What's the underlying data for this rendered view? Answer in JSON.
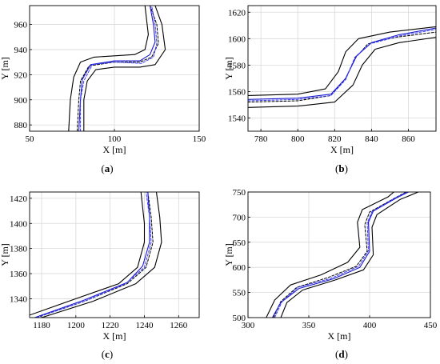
{
  "chart_data": [
    {
      "type": "line",
      "caption": "a",
      "xlabel": "X [m]",
      "ylabel": "Y [m]",
      "xlim": [
        50,
        150
      ],
      "ylim": [
        875,
        975
      ],
      "xticks": [
        50,
        100,
        150
      ],
      "yticks": [
        880,
        900,
        920,
        940,
        960
      ],
      "grid": true,
      "series": [
        {
          "style": "black-solid",
          "points": [
            [
              73,
              875
            ],
            [
              74,
              900
            ],
            [
              76,
              918
            ],
            [
              80,
              930
            ],
            [
              88,
              934
            ],
            [
              100,
              935
            ],
            [
              112,
              936
            ],
            [
              118,
              940
            ],
            [
              120,
              952
            ],
            [
              118,
              975
            ]
          ]
        },
        {
          "style": "black-solid",
          "points": [
            [
              82,
              875
            ],
            [
              82,
              900
            ],
            [
              84,
              915
            ],
            [
              89,
              924
            ],
            [
              100,
              926
            ],
            [
              115,
              926
            ],
            [
              124,
              928
            ],
            [
              130,
              940
            ],
            [
              128,
              960
            ],
            [
              124,
              975
            ]
          ]
        },
        {
          "style": "black-dashed",
          "points": [
            [
              78,
              875
            ],
            [
              79,
              900
            ],
            [
              80,
              915
            ],
            [
              85,
              927
            ],
            [
              100,
              930
            ],
            [
              115,
              930
            ],
            [
              122,
              934
            ],
            [
              126,
              945
            ],
            [
              125,
              960
            ],
            [
              121,
              975
            ]
          ]
        },
        {
          "style": "blue-solid",
          "points": [
            [
              79,
              875
            ],
            [
              80,
              900
            ],
            [
              81,
              916
            ],
            [
              86,
              928
            ],
            [
              100,
              931
            ],
            [
              115,
              931
            ],
            [
              121,
              936
            ],
            [
              124,
              946
            ],
            [
              123,
              960
            ],
            [
              121,
              975
            ]
          ]
        },
        {
          "style": "blue-dashed",
          "points": [
            [
              80,
              875
            ],
            [
              80,
              900
            ],
            [
              82,
              915
            ],
            [
              87,
              928
            ],
            [
              100,
              930
            ],
            [
              116,
              929
            ],
            [
              123,
              934
            ],
            [
              125,
              945
            ],
            [
              124,
              960
            ],
            [
              122,
              975
            ]
          ]
        }
      ]
    },
    {
      "type": "line",
      "caption": "b",
      "xlabel": "X [m]",
      "ylabel": "Y [m]",
      "xlim": [
        773,
        875
      ],
      "ylim": [
        1530,
        1625
      ],
      "xticks": [
        780,
        800,
        820,
        840,
        860
      ],
      "yticks": [
        1540,
        1560,
        1580,
        1600,
        1620
      ],
      "grid": true,
      "series": [
        {
          "style": "black-solid",
          "points": [
            [
              773,
              1557
            ],
            [
              800,
              1558
            ],
            [
              815,
              1562
            ],
            [
              822,
              1575
            ],
            [
              826,
              1590
            ],
            [
              833,
              1600
            ],
            [
              850,
              1605
            ],
            [
              875,
              1609
            ]
          ]
        },
        {
          "style": "black-solid",
          "points": [
            [
              773,
              1548
            ],
            [
              800,
              1549
            ],
            [
              820,
              1552
            ],
            [
              830,
              1565
            ],
            [
              835,
              1580
            ],
            [
              842,
              1592
            ],
            [
              855,
              1597
            ],
            [
              875,
              1601
            ]
          ]
        },
        {
          "style": "black-dashed",
          "points": [
            [
              773,
              1552
            ],
            [
              800,
              1553
            ],
            [
              818,
              1557
            ],
            [
              826,
              1570
            ],
            [
              831,
              1585
            ],
            [
              838,
              1596
            ],
            [
              853,
              1601
            ],
            [
              875,
              1605
            ]
          ]
        },
        {
          "style": "blue-solid",
          "points": [
            [
              773,
              1554
            ],
            [
              800,
              1555
            ],
            [
              818,
              1558
            ],
            [
              826,
              1570
            ],
            [
              832,
              1587
            ],
            [
              840,
              1597
            ],
            [
              855,
              1603
            ],
            [
              875,
              1608
            ]
          ]
        },
        {
          "style": "blue-dashed",
          "points": [
            [
              773,
              1553
            ],
            [
              800,
              1554
            ],
            [
              818,
              1557
            ],
            [
              826,
              1569
            ],
            [
              831,
              1586
            ],
            [
              839,
              1596
            ],
            [
              855,
              1602
            ],
            [
              875,
              1607
            ]
          ]
        }
      ]
    },
    {
      "type": "line",
      "caption": "c",
      "xlabel": "X [m]",
      "ylabel": "Y [m]",
      "xlim": [
        1173,
        1272
      ],
      "ylim": [
        1325,
        1425
      ],
      "xticks": [
        1180,
        1200,
        1220,
        1240,
        1260
      ],
      "yticks": [
        1340,
        1360,
        1380,
        1400,
        1420
      ],
      "grid": true,
      "series": [
        {
          "style": "black-solid",
          "points": [
            [
              1173,
              1327
            ],
            [
              1200,
              1340
            ],
            [
              1225,
              1352
            ],
            [
              1236,
              1365
            ],
            [
              1240,
              1385
            ],
            [
              1240,
              1400
            ],
            [
              1238,
              1425
            ]
          ]
        },
        {
          "style": "black-solid",
          "points": [
            [
              1180,
              1325
            ],
            [
              1210,
              1338
            ],
            [
              1235,
              1352
            ],
            [
              1246,
              1365
            ],
            [
              1250,
              1385
            ],
            [
              1249,
              1405
            ],
            [
              1247,
              1425
            ]
          ]
        },
        {
          "style": "black-dashed",
          "points": [
            [
              1177,
              1325
            ],
            [
              1205,
              1338
            ],
            [
              1230,
              1352
            ],
            [
              1241,
              1365
            ],
            [
              1245,
              1385
            ],
            [
              1244,
              1405
            ],
            [
              1242,
              1425
            ]
          ]
        },
        {
          "style": "blue-solid",
          "points": [
            [
              1176,
              1325
            ],
            [
              1205,
              1339
            ],
            [
              1230,
              1353
            ],
            [
              1239,
              1366
            ],
            [
              1243,
              1385
            ],
            [
              1243,
              1405
            ],
            [
              1242,
              1425
            ]
          ]
        },
        {
          "style": "blue-dashed",
          "points": [
            [
              1177,
              1325
            ],
            [
              1205,
              1338
            ],
            [
              1229,
              1352
            ],
            [
              1240,
              1365
            ],
            [
              1244,
              1385
            ],
            [
              1243,
              1405
            ],
            [
              1241,
              1425
            ]
          ]
        }
      ]
    },
    {
      "type": "line",
      "caption": "d",
      "xlabel": "X [m]",
      "ylabel": "Y [m]",
      "xlim": [
        300,
        450
      ],
      "ylim": [
        500,
        750
      ],
      "xticks": [
        300,
        350,
        400,
        450
      ],
      "yticks": [
        500,
        550,
        600,
        650,
        700,
        750
      ],
      "grid": true,
      "series": [
        {
          "style": "black-solid",
          "points": [
            [
              315,
              500
            ],
            [
              322,
              535
            ],
            [
              335,
              565
            ],
            [
              360,
              585
            ],
            [
              382,
              610
            ],
            [
              392,
              640
            ],
            [
              390,
              690
            ],
            [
              394,
              715
            ],
            [
              415,
              740
            ],
            [
              420,
              750
            ]
          ]
        },
        {
          "style": "black-solid",
          "points": [
            [
              327,
              500
            ],
            [
              332,
              530
            ],
            [
              345,
              555
            ],
            [
              372,
              575
            ],
            [
              395,
              595
            ],
            [
              403,
              625
            ],
            [
              402,
              680
            ],
            [
              406,
              705
            ],
            [
              425,
              735
            ],
            [
              440,
              750
            ]
          ]
        },
        {
          "style": "black-dashed",
          "points": [
            [
              321,
              500
            ],
            [
              327,
              532
            ],
            [
              340,
              560
            ],
            [
              366,
              580
            ],
            [
              389,
              602
            ],
            [
              398,
              632
            ],
            [
              396,
              685
            ],
            [
              400,
              710
            ],
            [
              420,
              737
            ],
            [
              430,
              750
            ]
          ]
        },
        {
          "style": "blue-solid",
          "points": [
            [
              320,
              500
            ],
            [
              327,
              530
            ],
            [
              342,
              558
            ],
            [
              370,
              577
            ],
            [
              392,
              600
            ],
            [
              400,
              632
            ],
            [
              399,
              690
            ],
            [
              403,
              712
            ],
            [
              422,
              738
            ],
            [
              432,
              750
            ]
          ]
        },
        {
          "style": "blue-dashed",
          "points": [
            [
              322,
              500
            ],
            [
              328,
              532
            ],
            [
              341,
              560
            ],
            [
              368,
              578
            ],
            [
              391,
              602
            ],
            [
              399,
              633
            ],
            [
              398,
              688
            ],
            [
              402,
              711
            ],
            [
              421,
              738
            ],
            [
              431,
              750
            ]
          ]
        }
      ]
    }
  ]
}
